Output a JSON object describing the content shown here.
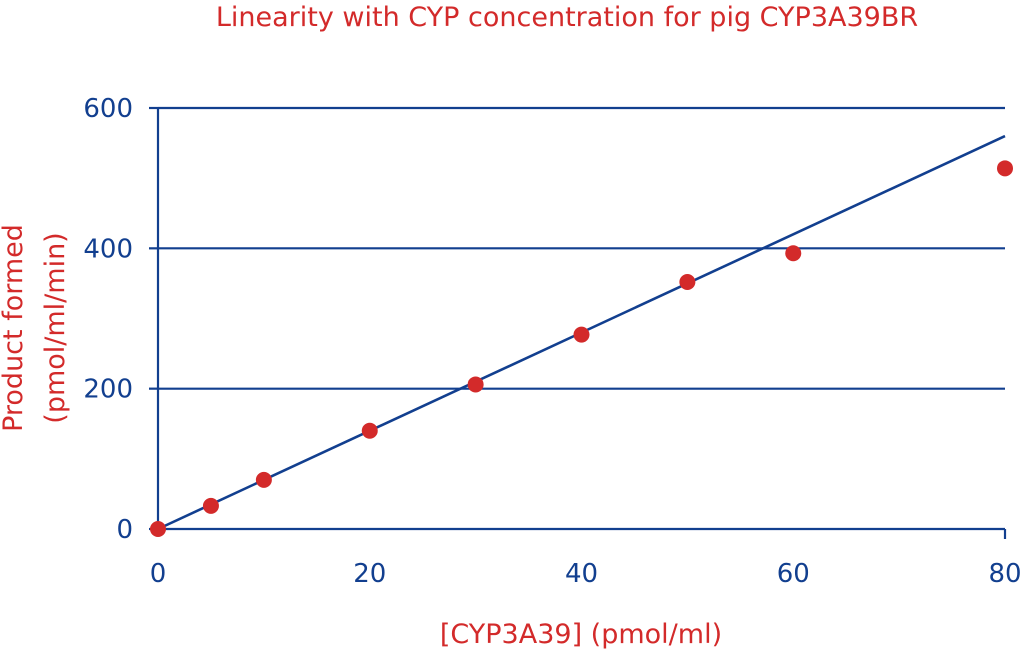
{
  "chart_data": {
    "type": "scatter",
    "title": "Linearity with CYP concentration for pig CYP3A39BR",
    "xlabel": "[CYP3A39] (pmol/ml)",
    "ylabel_line1": "Product formed",
    "ylabel_line2": "(pmol/ml/min)",
    "xlim": [
      0,
      80
    ],
    "ylim": [
      0,
      600
    ],
    "x_ticks": [
      "0",
      "20",
      "40",
      "60",
      "80"
    ],
    "y_ticks": [
      "0",
      "200",
      "400",
      "600"
    ],
    "grid": "horizontal",
    "series": [
      {
        "x": [
          0,
          5,
          10,
          20,
          30,
          40,
          50,
          60,
          80
        ],
        "y": [
          0,
          33,
          70,
          140,
          206,
          277,
          352,
          393,
          514
        ]
      }
    ],
    "fit_line": {
      "x": [
        0,
        80
      ],
      "y": [
        0,
        560
      ]
    },
    "colors": {
      "points": "#d32a2a",
      "line": "#123f8f",
      "grid": "#123f8f",
      "text_accent": "#d32a2a",
      "ticks": "#123f8f"
    }
  }
}
